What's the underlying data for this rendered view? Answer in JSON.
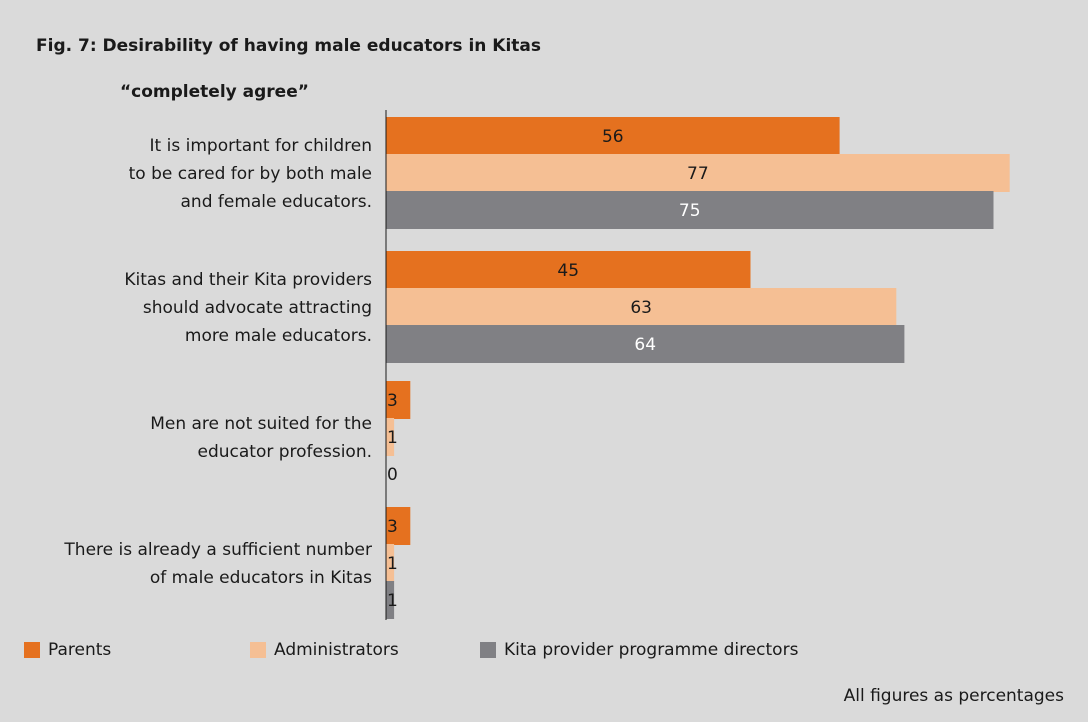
{
  "figure": {
    "title": "Fig. 7: Desirability of having male educators in Kitas",
    "subtitle": "“completely agree”",
    "footnote": "All figures as percentages"
  },
  "colors": {
    "background": "#dadada",
    "parents": "#e5711f",
    "administrators": "#f5bf94",
    "directors": "#808084",
    "axis": "#1a1a1a"
  },
  "chart_data": {
    "type": "bar",
    "orientation": "horizontal",
    "categories": [
      [
        "It is important for children",
        "to be cared for by both male",
        "and female educators."
      ],
      [
        "Kitas and their Kita providers",
        "should advocate attracting",
        "more male educators."
      ],
      [
        "Men are not suited for the",
        "educator profession."
      ],
      [
        "There is already a sufficient number",
        "of male educators in Kitas"
      ]
    ],
    "series": [
      {
        "name": "Parents",
        "color": "#e5711f",
        "values": [
          56,
          45,
          3,
          3
        ]
      },
      {
        "name": "Administrators",
        "color": "#f5bf94",
        "values": [
          77,
          63,
          1,
          1
        ]
      },
      {
        "name": "Kita provider programme directors",
        "color": "#808084",
        "values": [
          75,
          64,
          0,
          1
        ]
      }
    ],
    "xlim": [
      0,
      80
    ],
    "grid": false,
    "legend_position": "bottom"
  }
}
